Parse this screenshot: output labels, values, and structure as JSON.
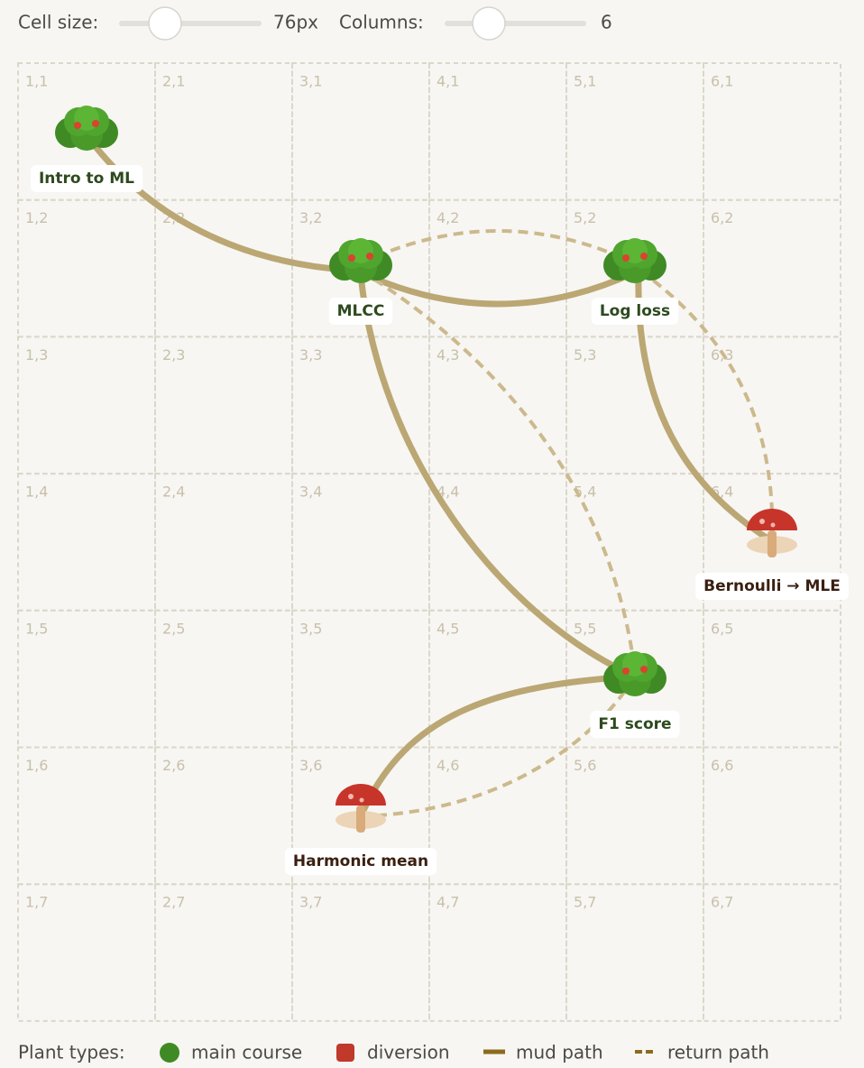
{
  "controls": {
    "cell_size": {
      "label": "Cell size:",
      "value": "76px"
    },
    "columns": {
      "label": "Columns:",
      "value": 6
    }
  },
  "grid": {
    "cells": [
      [
        "1,1",
        "2,1",
        "3,1",
        "4,1",
        "5,1",
        "6,1"
      ],
      [
        "1,2",
        "2,2",
        "3,2",
        "4,2",
        "5,2",
        "6,2"
      ],
      [
        "1,3",
        "2,3",
        "3,3",
        "4,3",
        "5,3",
        "6,3"
      ],
      [
        "1,4",
        "2,4",
        "3,4",
        "4,4",
        "5,4",
        "6,4"
      ],
      [
        "1,5",
        "2,5",
        "3,5",
        "4,5",
        "5,5",
        "6,5"
      ],
      [
        "1,6",
        "2,6",
        "3,6",
        "4,6",
        "5,6",
        "6,6"
      ],
      [
        "1,7",
        "2,7",
        "3,7",
        "4,7",
        "5,7",
        "6,7"
      ]
    ]
  },
  "nodes": [
    {
      "label": "Intro to ML"
    },
    {
      "label": "MLCC"
    },
    {
      "label": "Log loss"
    },
    {
      "label": "Bernoulli → MLE"
    },
    {
      "label": "F1 score"
    },
    {
      "label": "Harmonic mean"
    }
  ],
  "legend": {
    "title": "Plant types:",
    "items": [
      "main course",
      "diversion",
      "mud path",
      "return path"
    ]
  }
}
